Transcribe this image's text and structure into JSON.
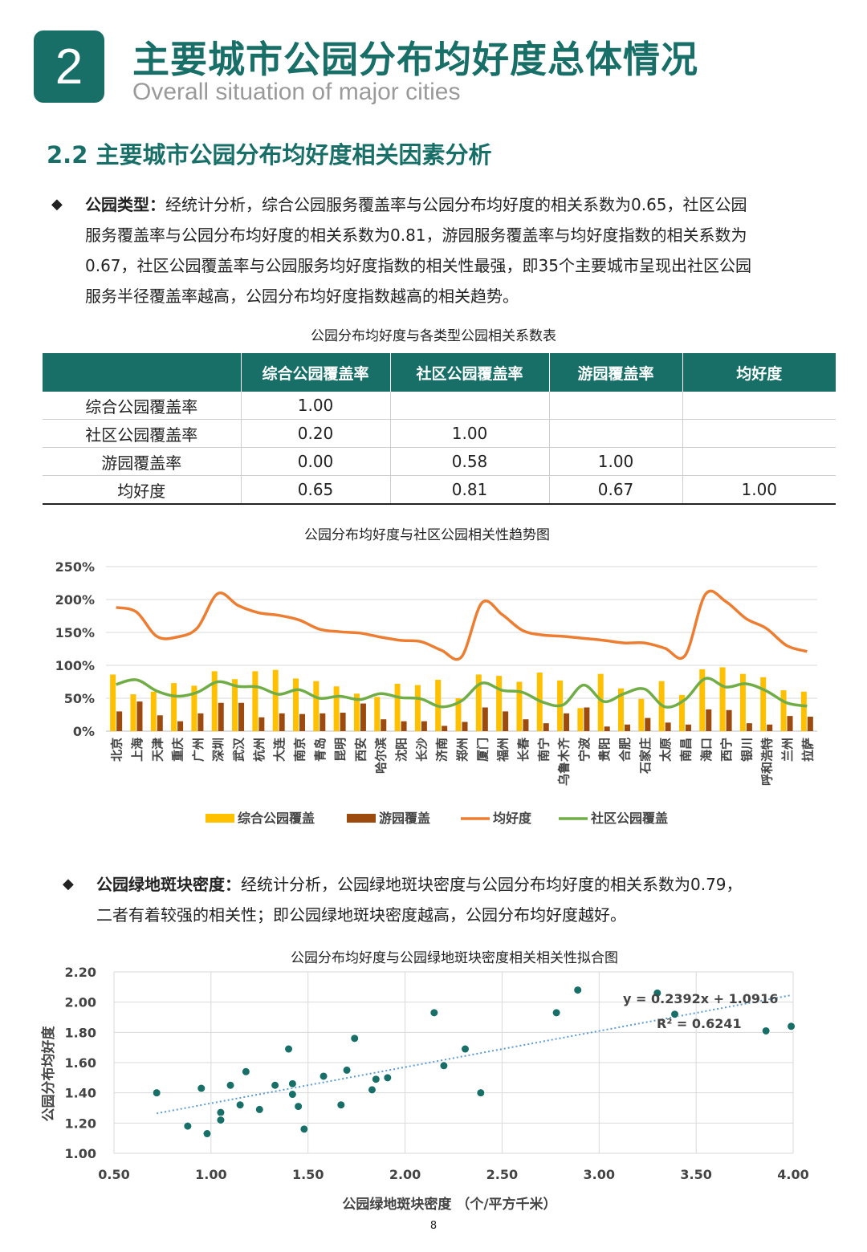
{
  "header": {
    "number": "2",
    "title": "主要城市公园分布均好度总体情况",
    "subtitle": "Overall situation of major cities"
  },
  "section": {
    "title": "2.2 主要城市公园分布均好度相关因素分析"
  },
  "para1": {
    "bullet": "◆",
    "label": "公园类型：",
    "lines": [
      "经统计分析，综合公园服务覆盖率与公园分布均好度的相关系数为0.65，社区公园",
      "服务覆盖率与公园分布均好度的相关系数为0.81，游园服务覆盖率与均好度指数的相关系数为",
      "0.67，社区公园覆盖率与公园服务均好度指数的相关性最强，即35个主要城市呈现出社区公园",
      "服务半径覆盖率越高，公园分布均好度指数越高的相关趋势。"
    ]
  },
  "table": {
    "caption": "公园分布均好度与各类型公园相关系数表",
    "headers": [
      "",
      "综合公园覆盖率",
      "社区公园覆盖率",
      "游园覆盖率",
      "均好度"
    ],
    "rows": [
      [
        "综合公园覆盖率",
        "1.00",
        "",
        "",
        ""
      ],
      [
        "社区公园覆盖率",
        "0.20",
        "1.00",
        "",
        ""
      ],
      [
        "游园覆盖率",
        "0.00",
        "0.58",
        "1.00",
        ""
      ],
      [
        "均好度",
        "0.65",
        "0.81",
        "0.67",
        "1.00"
      ]
    ]
  },
  "para2": {
    "bullet": "◆",
    "label": "公园绿地斑块密度：",
    "lines": [
      "经统计分析，公园绿地斑块密度与公园分布均好度的相关系数为0.79，",
      "二者有着较强的相关性；即公园绿地斑块密度越高，公园分布均好度越好。"
    ]
  },
  "page_number": "8",
  "colors": {
    "brand": "#176f68",
    "bar_general": "#ffc000",
    "bar_garden": "#9c4a0e",
    "line_balance": "#ed7d31",
    "line_community": "#70ad47",
    "scatter_point": "#176f68",
    "trendline": "#5b9bd5"
  },
  "chart_data": [
    {
      "type": "bar",
      "title": "公园分布均好度与社区公园相关性趋势图",
      "categories": [
        "北京",
        "上海",
        "天津",
        "重庆",
        "广州",
        "深圳",
        "武汉",
        "杭州",
        "大连",
        "南京",
        "青岛",
        "昆明",
        "西安",
        "哈尔滨",
        "沈阳",
        "长沙",
        "济南",
        "郑州",
        "厦门",
        "福州",
        "长春",
        "南宁",
        "乌鲁木齐",
        "宁波",
        "贵阳",
        "合肥",
        "石家庄",
        "太原",
        "南昌",
        "海口",
        "西宁",
        "银川",
        "呼和浩特",
        "兰州",
        "拉萨"
      ],
      "yticks": [
        "0%",
        "50%",
        "100%",
        "150%",
        "200%",
        "250%"
      ],
      "ylim": [
        0,
        250
      ],
      "grid": true,
      "legend_position": "bottom",
      "series": [
        {
          "name": "综合公园覆盖",
          "kind": "bar",
          "values": [
            86,
            56,
            60,
            73,
            69,
            91,
            79,
            91,
            93,
            80,
            76,
            68,
            57,
            52,
            72,
            70,
            78,
            50,
            86,
            84,
            75,
            89,
            77,
            35,
            87,
            65,
            49,
            76,
            55,
            94,
            97,
            87,
            82,
            62,
            60
          ]
        },
        {
          "name": "游园覆盖",
          "kind": "bar",
          "values": [
            30,
            45,
            24,
            15,
            27,
            43,
            43,
            21,
            27,
            26,
            27,
            28,
            42,
            18,
            15,
            15,
            8,
            14,
            36,
            30,
            18,
            12,
            27,
            36,
            7,
            10,
            20,
            13,
            10,
            33,
            32,
            12,
            10,
            23,
            22
          ]
        },
        {
          "name": "均好度",
          "kind": "line",
          "values": [
            188,
            181,
            144,
            143,
            157,
            209,
            191,
            180,
            176,
            169,
            155,
            151,
            149,
            143,
            138,
            136,
            123,
            113,
            195,
            177,
            153,
            146,
            144,
            141,
            138,
            134,
            134,
            126,
            115,
            208,
            197,
            171,
            156,
            130,
            121
          ]
        },
        {
          "name": "社区公园覆盖",
          "kind": "line",
          "values": [
            71,
            78,
            61,
            53,
            59,
            75,
            68,
            67,
            56,
            63,
            50,
            53,
            48,
            57,
            51,
            49,
            37,
            46,
            73,
            62,
            59,
            44,
            40,
            70,
            45,
            57,
            64,
            37,
            48,
            80,
            67,
            72,
            61,
            43,
            38
          ]
        }
      ]
    },
    {
      "type": "scatter",
      "title": "公园分布均好度与公园绿地斑块密度相关相关性拟合图",
      "xlabel": "公园绿地斑块密度 （个/平方千米）",
      "ylabel": "公园分布均好度",
      "xlim": [
        0.5,
        4.0
      ],
      "ylim": [
        1.0,
        2.2
      ],
      "xticks": [
        "0.50",
        "1.00",
        "1.50",
        "2.00",
        "2.50",
        "3.00",
        "3.50",
        "4.00"
      ],
      "yticks": [
        "1.00",
        "1.20",
        "1.40",
        "1.60",
        "1.80",
        "2.00",
        "2.20"
      ],
      "trendline": {
        "slope": 0.2392,
        "intercept": 1.0916,
        "equation": "y = 0.2392x + 1.0916",
        "r2": "R² = 0.6241"
      },
      "points": [
        [
          0.72,
          1.4
        ],
        [
          0.88,
          1.18
        ],
        [
          0.95,
          1.43
        ],
        [
          0.98,
          1.13
        ],
        [
          1.05,
          1.27
        ],
        [
          1.05,
          1.22
        ],
        [
          1.1,
          1.45
        ],
        [
          1.15,
          1.32
        ],
        [
          1.18,
          1.54
        ],
        [
          1.25,
          1.29
        ],
        [
          1.33,
          1.45
        ],
        [
          1.4,
          1.69
        ],
        [
          1.42,
          1.46
        ],
        [
          1.42,
          1.39
        ],
        [
          1.45,
          1.31
        ],
        [
          1.48,
          1.16
        ],
        [
          1.58,
          1.51
        ],
        [
          1.67,
          1.32
        ],
        [
          1.7,
          1.55
        ],
        [
          1.74,
          1.76
        ],
        [
          1.83,
          1.42
        ],
        [
          1.85,
          1.49
        ],
        [
          1.91,
          1.5
        ],
        [
          2.15,
          1.93
        ],
        [
          2.2,
          1.58
        ],
        [
          2.31,
          1.69
        ],
        [
          2.39,
          1.4
        ],
        [
          2.78,
          1.93
        ],
        [
          2.89,
          2.08
        ],
        [
          3.3,
          2.06
        ],
        [
          3.39,
          1.92
        ],
        [
          3.86,
          1.81
        ],
        [
          3.99,
          1.84
        ]
      ]
    }
  ]
}
